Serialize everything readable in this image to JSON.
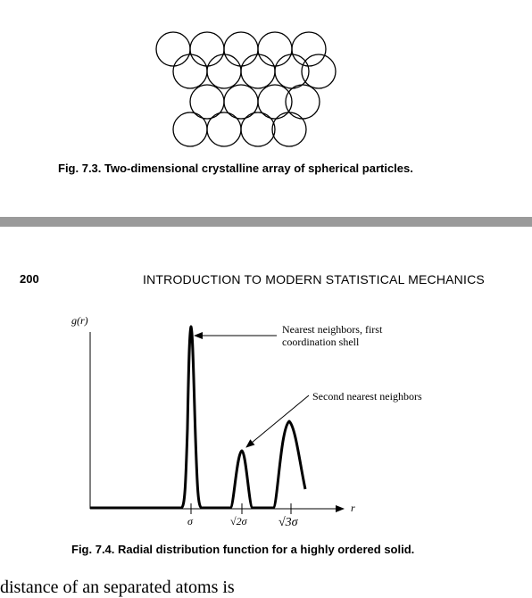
{
  "figure_7_3": {
    "label": "Fig. 7.3.",
    "caption": "Two-dimensional crystalline array of spherical particles."
  },
  "page_header": {
    "page_number": "200",
    "running_title": "INTRODUCTION TO MODERN STATISTICAL MECHANICS"
  },
  "figure_7_4": {
    "label": "Fig. 7.4.",
    "caption": "Radial distribution function for a highly ordered solid.",
    "y_axis_label": "g(r)",
    "x_axis_label": "r",
    "annotation_1_line1": "Nearest neighbors, first",
    "annotation_1_line2": "coordination shell",
    "annotation_2": "Second nearest neighbors",
    "tick_labels": [
      "σ",
      "√2σ",
      "√3σ"
    ]
  },
  "bottom_text": "distance of an separated atoms is"
}
